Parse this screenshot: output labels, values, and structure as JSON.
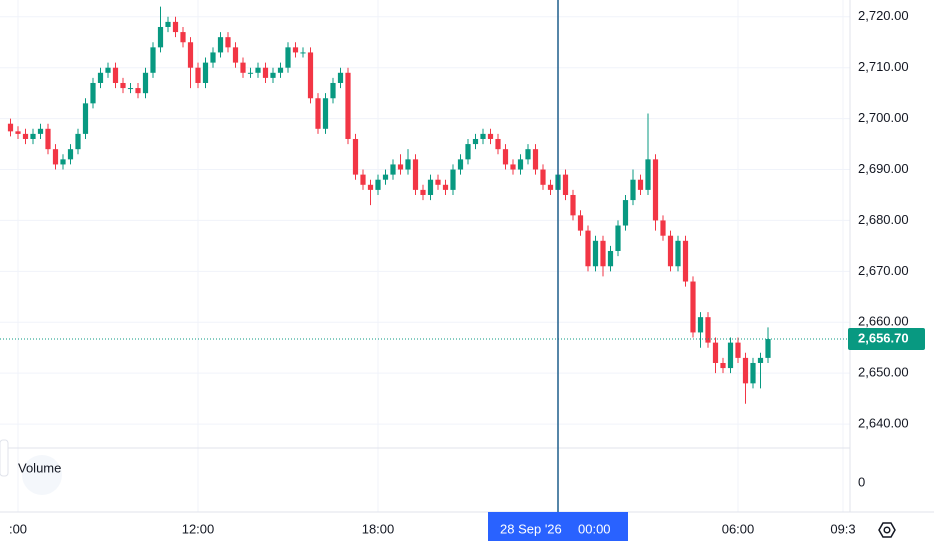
{
  "chart_data": {
    "type": "candlestick",
    "x": [
      "2026-09-27 05:45",
      "2026-09-27 06:00",
      "2026-09-27 06:15",
      "2026-09-27 06:30",
      "2026-09-27 06:45",
      "2026-09-27 07:00",
      "2026-09-27 07:15",
      "2026-09-27 07:30",
      "2026-09-27 07:45",
      "2026-09-27 08:00",
      "2026-09-27 08:15",
      "2026-09-27 08:30",
      "2026-09-27 08:45",
      "2026-09-27 09:00",
      "2026-09-27 09:15",
      "2026-09-27 09:30",
      "2026-09-27 09:45",
      "2026-09-27 10:00",
      "2026-09-27 10:15",
      "2026-09-27 10:30",
      "2026-09-27 10:45",
      "2026-09-27 11:00",
      "2026-09-27 11:15",
      "2026-09-27 11:30",
      "2026-09-27 11:45",
      "2026-09-27 12:00",
      "2026-09-27 12:15",
      "2026-09-27 12:30",
      "2026-09-27 12:45",
      "2026-09-27 13:00",
      "2026-09-27 13:15",
      "2026-09-27 13:30",
      "2026-09-27 13:45",
      "2026-09-27 14:00",
      "2026-09-27 14:15",
      "2026-09-27 14:30",
      "2026-09-27 14:45",
      "2026-09-27 15:00",
      "2026-09-27 15:15",
      "2026-09-27 15:30",
      "2026-09-27 15:45",
      "2026-09-27 16:00",
      "2026-09-27 16:15",
      "2026-09-27 16:30",
      "2026-09-27 16:45",
      "2026-09-27 17:00",
      "2026-09-27 17:15",
      "2026-09-27 17:30",
      "2026-09-27 17:45",
      "2026-09-27 18:00",
      "2026-09-27 18:15",
      "2026-09-27 18:30",
      "2026-09-27 18:45",
      "2026-09-27 19:00",
      "2026-09-27 19:15",
      "2026-09-27 19:30",
      "2026-09-27 19:45",
      "2026-09-27 20:00",
      "2026-09-27 20:15",
      "2026-09-27 20:30",
      "2026-09-27 20:45",
      "2026-09-27 21:00",
      "2026-09-27 21:15",
      "2026-09-27 21:30",
      "2026-09-27 21:45",
      "2026-09-27 22:00",
      "2026-09-27 22:15",
      "2026-09-27 22:30",
      "2026-09-27 22:45",
      "2026-09-27 23:00",
      "2026-09-27 23:15",
      "2026-09-27 23:30",
      "2026-09-27 23:45",
      "2026-09-28 00:00",
      "2026-09-28 00:15",
      "2026-09-28 00:30",
      "2026-09-28 00:45",
      "2026-09-28 01:00",
      "2026-09-28 01:15",
      "2026-09-28 01:30",
      "2026-09-28 01:45",
      "2026-09-28 02:00",
      "2026-09-28 02:15",
      "2026-09-28 02:30",
      "2026-09-28 02:45",
      "2026-09-28 03:00",
      "2026-09-28 03:15",
      "2026-09-28 03:30",
      "2026-09-28 03:45",
      "2026-09-28 04:00",
      "2026-09-28 04:15",
      "2026-09-28 04:30",
      "2026-09-28 04:45",
      "2026-09-28 05:00",
      "2026-09-28 05:15",
      "2026-09-28 05:30",
      "2026-09-28 05:45",
      "2026-09-28 06:00",
      "2026-09-28 06:15",
      "2026-09-28 06:30",
      "2026-09-28 06:45",
      "2026-09-28 07:00"
    ],
    "open": [
      2699,
      2697.5,
      2697,
      2696,
      2697,
      2698,
      2694,
      2691,
      2692,
      2694,
      2697,
      2703,
      2707,
      2709,
      2710,
      2707,
      2706,
      2706,
      2705,
      2709,
      2714,
      2718,
      2719,
      2717,
      2715,
      2710,
      2707,
      2711,
      2713,
      2716,
      2714,
      2711,
      2709,
      2709,
      2710,
      2708,
      2709,
      2710,
      2714,
      2713,
      2713,
      2704,
      2698,
      2704,
      2707,
      2709,
      2696,
      2689,
      2687,
      2686,
      2688,
      2689,
      2691,
      2690,
      2692,
      2686,
      2685,
      2688,
      2687,
      2686,
      2690,
      2692,
      2695,
      2696,
      2697,
      2696,
      2694,
      2691,
      2690,
      2692,
      2694,
      2690,
      2687,
      2686,
      2689,
      2685,
      2681,
      2678,
      2671,
      2676,
      2671,
      2674,
      2679,
      2684,
      2688,
      2686,
      2692,
      2680,
      2677,
      2671,
      2676,
      2668,
      2658,
      2661,
      2656,
      2652,
      2651,
      2656,
      2653,
      2648,
      2652,
      2653
    ],
    "high": [
      2700,
      2698.5,
      2698,
      2698,
      2699,
      2699,
      2695,
      2693,
      2695,
      2698,
      2704,
      2708,
      2710,
      2711,
      2711,
      2708,
      2707,
      2707,
      2710,
      2715,
      2722,
      2720,
      2720,
      2718,
      2716,
      2711,
      2712,
      2714,
      2717,
      2717,
      2715,
      2712,
      2710,
      2711,
      2711,
      2710,
      2711,
      2715,
      2715,
      2714,
      2714,
      2705,
      2705,
      2708,
      2710,
      2710,
      2697,
      2690,
      2688,
      2689,
      2690,
      2692,
      2693,
      2694,
      2693,
      2687,
      2689,
      2689,
      2688,
      2691,
      2693,
      2696,
      2697,
      2698,
      2698,
      2697,
      2695,
      2692,
      2693,
      2695,
      2695,
      2691,
      2688,
      2691,
      2690,
      2686,
      2682,
      2679,
      2677,
      2677,
      2675,
      2680,
      2685,
      2690,
      2689,
      2701,
      2693,
      2681,
      2678,
      2677,
      2677,
      2669,
      2662,
      2662,
      2657,
      2653,
      2657,
      2657,
      2654,
      2653,
      2654,
      2659
    ],
    "low": [
      2696.5,
      2696,
      2695,
      2695,
      2696,
      2693,
      2690,
      2690,
      2691,
      2693,
      2696,
      2702,
      2706,
      2708,
      2706,
      2705,
      2705,
      2704,
      2704,
      2708,
      2713,
      2717,
      2716,
      2714,
      2706,
      2706,
      2706,
      2710,
      2712,
      2713,
      2710,
      2708,
      2708,
      2708,
      2707,
      2707,
      2708,
      2709,
      2712,
      2712,
      2703,
      2697,
      2697,
      2703,
      2706,
      2695,
      2688,
      2686,
      2683,
      2685,
      2687,
      2688,
      2689,
      2689,
      2685,
      2684,
      2684,
      2686,
      2685,
      2685,
      2689,
      2691,
      2694,
      2695,
      2695,
      2693,
      2690,
      2689,
      2689,
      2691,
      2689,
      2686,
      2685,
      2685,
      2684,
      2680,
      2677,
      2670,
      2670,
      2669,
      2670,
      2673,
      2678,
      2683,
      2685,
      2685,
      2678,
      2676,
      2670,
      2670,
      2667,
      2657,
      2655,
      2655,
      2650,
      2650,
      2650,
      2652,
      2644,
      2647,
      2647,
      2652
    ],
    "close": [
      2697.5,
      2697,
      2696,
      2697,
      2698,
      2694,
      2691,
      2692,
      2694,
      2697,
      2703,
      2707,
      2709,
      2710,
      2707,
      2706,
      2706,
      2705,
      2709,
      2714,
      2718,
      2719,
      2717,
      2715,
      2710,
      2707,
      2711,
      2713,
      2716,
      2714,
      2711,
      2709,
      2709,
      2710,
      2708,
      2709,
      2710,
      2714,
      2713,
      2713,
      2704,
      2698,
      2704,
      2707,
      2709,
      2696,
      2689,
      2687,
      2686,
      2688,
      2689,
      2691,
      2690,
      2692,
      2686,
      2685,
      2688,
      2687,
      2686,
      2690,
      2692,
      2695,
      2696,
      2697,
      2696,
      2694,
      2691,
      2690,
      2692,
      2694,
      2690,
      2687,
      2686,
      2689,
      2685,
      2681,
      2678,
      2671,
      2676,
      2671,
      2674,
      2679,
      2684,
      2688,
      2686,
      2692,
      2680,
      2677,
      2671,
      2676,
      2668,
      2658,
      2661,
      2656,
      2652,
      2651,
      2656,
      2653,
      2648,
      2652,
      2653,
      2656.7
    ],
    "up_color": "#089981",
    "down_color": "#f23645",
    "xlim": [
      "2026-09-27 05:24",
      "2026-09-28 09:44"
    ],
    "xticks": [
      {
        "value": "2026-09-27 06:00",
        "label": ":00"
      },
      {
        "value": "2026-09-27 12:00",
        "label": "12:00"
      },
      {
        "value": "2026-09-27 18:00",
        "label": "18:00"
      },
      {
        "value": "2026-09-28 06:00",
        "label": "06:00"
      },
      {
        "value": "2026-09-28 09:30",
        "label": "09:3"
      }
    ],
    "ylim": [
      2635.3,
      2723.3
    ],
    "yticks": [
      {
        "value": 2640,
        "label": "2,640.00"
      },
      {
        "value": 2650,
        "label": "2,650.00"
      },
      {
        "value": 2660,
        "label": "2,660.00"
      },
      {
        "value": 2670,
        "label": "2,670.00"
      },
      {
        "value": 2680,
        "label": "2,680.00"
      },
      {
        "value": 2690,
        "label": "2,690.00"
      },
      {
        "value": 2700,
        "label": "2,700.00"
      },
      {
        "value": 2710,
        "label": "2,710.00"
      },
      {
        "value": 2720,
        "label": "2,720.00"
      }
    ],
    "grid": true,
    "last_price": {
      "value": 2656.7,
      "label": "2,656.70"
    },
    "crosshair": {
      "x": "2026-09-28 00:00",
      "date_label": "28 Sep '26",
      "time_label": "00:00"
    },
    "volume_label": "Volume",
    "volume_yticks": [
      0
    ]
  }
}
